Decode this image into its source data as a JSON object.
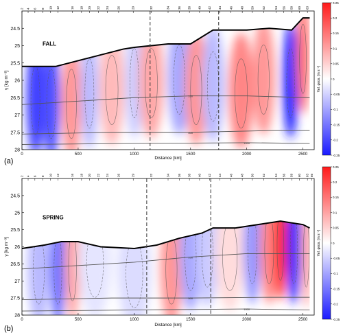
{
  "chart_data": [
    {
      "type": "heatmap",
      "panel_label": "(a)",
      "season": "FALL",
      "xlabel": "Distance [km]",
      "ylabel": "γ [kg m⁻³]",
      "xlim": [
        0,
        2600
      ],
      "ylim": [
        24,
        28
      ],
      "y_inverted": true,
      "x_ticks": [
        0,
        500,
        1000,
        1500,
        2000,
        2500
      ],
      "y_ticks": [
        24.5,
        25,
        25.5,
        26,
        26.5,
        27,
        27.5,
        28
      ],
      "station_ticks": [
        "2",
        "4",
        "6",
        "8",
        "10",
        "12",
        "16",
        "18",
        "20",
        "22",
        "24",
        "26",
        "29",
        "32",
        "34",
        "36",
        "38",
        "40",
        "42",
        "44",
        "46",
        "48",
        "50",
        "52",
        "54",
        "56",
        "58",
        "60",
        "63"
      ],
      "station_km": [
        0,
        55,
        115,
        185,
        255,
        320,
        450,
        530,
        600,
        680,
        760,
        860,
        990,
        1150,
        1300,
        1400,
        1490,
        1580,
        1670,
        1760,
        1860,
        1960,
        2050,
        2150,
        2260,
        2330,
        2400,
        2470,
        2540
      ],
      "dashed_lines_km": [
        1140,
        1750
      ],
      "surface_boundary": [
        [
          0,
          25.6
        ],
        [
          300,
          25.6
        ],
        [
          600,
          25.35
        ],
        [
          900,
          25.1
        ],
        [
          1000,
          25.05
        ],
        [
          1300,
          24.95
        ],
        [
          1500,
          24.95
        ],
        [
          1700,
          24.55
        ],
        [
          2000,
          24.55
        ],
        [
          2200,
          24.5
        ],
        [
          2400,
          24.55
        ],
        [
          2500,
          24.2
        ],
        [
          2560,
          24.2
        ]
      ],
      "depth_contours": [
        {
          "label": "100",
          "points": [
            [
              0,
              26.7
            ],
            [
              500,
              26.6
            ],
            [
              1000,
              26.5
            ],
            [
              1500,
              26.45
            ],
            [
              2000,
              26.45
            ],
            [
              2560,
              26.5
            ]
          ]
        },
        {
          "label": "500",
          "points": [
            [
              0,
              27.55
            ],
            [
              800,
              27.5
            ],
            [
              1500,
              27.5
            ],
            [
              2200,
              27.45
            ],
            [
              2560,
              27.45
            ]
          ]
        },
        {
          "label": "1000",
          "points": [
            [
              0,
              27.85
            ],
            [
              1000,
              27.82
            ],
            [
              2000,
              27.8
            ],
            [
              2560,
              27.82
            ]
          ]
        }
      ],
      "anomalies": [
        {
          "x": 120,
          "y": 26.5,
          "w": 160,
          "amp": -0.22
        },
        {
          "x": 260,
          "y": 26.6,
          "w": 160,
          "amp": -0.2
        },
        {
          "x": 440,
          "y": 26.6,
          "w": 180,
          "amp": 0.12
        },
        {
          "x": 600,
          "y": 26.3,
          "w": 160,
          "amp": -0.08
        },
        {
          "x": 800,
          "y": 26.2,
          "w": 220,
          "amp": 0.08
        },
        {
          "x": 1000,
          "y": 26.0,
          "w": 160,
          "amp": -0.06
        },
        {
          "x": 1150,
          "y": 26.0,
          "w": 220,
          "amp": 0.1
        },
        {
          "x": 1400,
          "y": 25.9,
          "w": 200,
          "amp": -0.1
        },
        {
          "x": 1550,
          "y": 26.2,
          "w": 200,
          "amp": 0.12
        },
        {
          "x": 1700,
          "y": 26.1,
          "w": 200,
          "amp": -0.08
        },
        {
          "x": 1950,
          "y": 26.3,
          "w": 220,
          "amp": 0.14
        },
        {
          "x": 2150,
          "y": 25.9,
          "w": 200,
          "amp": 0.12
        },
        {
          "x": 2390,
          "y": 26.0,
          "w": 140,
          "amp": -0.28
        },
        {
          "x": 2500,
          "y": 25.3,
          "w": 120,
          "amp": 0.16
        }
      ]
    },
    {
      "type": "heatmap",
      "panel_label": "(b)",
      "season": "SPRING",
      "xlabel": "Distance [km]",
      "ylabel": "γ [kg m⁻³]",
      "xlim": [
        0,
        2600
      ],
      "ylim": [
        24,
        28
      ],
      "y_inverted": true,
      "x_ticks": [
        0,
        500,
        1000,
        1500,
        2000,
        2500
      ],
      "y_ticks": [
        24.5,
        25,
        25.5,
        26,
        26.5,
        27,
        27.5,
        28
      ],
      "station_ticks": [
        "2",
        "4",
        "6",
        "8",
        "10",
        "12",
        "16",
        "18",
        "20",
        "22",
        "24",
        "26",
        "29",
        "32",
        "34",
        "36",
        "38",
        "40",
        "42",
        "44",
        "46",
        "48",
        "50",
        "52",
        "54",
        "56",
        "58",
        "60",
        "63",
        "66"
      ],
      "station_km": [
        0,
        55,
        115,
        185,
        255,
        320,
        450,
        530,
        600,
        680,
        760,
        860,
        990,
        1150,
        1300,
        1400,
        1490,
        1580,
        1670,
        1760,
        1860,
        1960,
        2050,
        2150,
        2260,
        2330,
        2400,
        2470,
        2540,
        2580
      ],
      "dashed_lines_km": [
        1110,
        1680
      ],
      "surface_boundary": [
        [
          0,
          26.05
        ],
        [
          200,
          25.95
        ],
        [
          350,
          25.85
        ],
        [
          500,
          25.85
        ],
        [
          700,
          26.0
        ],
        [
          1000,
          26.05
        ],
        [
          1200,
          25.95
        ],
        [
          1400,
          25.75
        ],
        [
          1600,
          25.6
        ],
        [
          1700,
          25.45
        ],
        [
          1900,
          25.45
        ],
        [
          2100,
          25.35
        ],
        [
          2300,
          25.25
        ],
        [
          2500,
          25.35
        ],
        [
          2560,
          25.45
        ]
      ],
      "depth_contours": [
        {
          "label": "100",
          "points": [
            [
              0,
              26.65
            ],
            [
              500,
              26.55
            ],
            [
              1000,
              26.45
            ],
            [
              1500,
              26.3
            ],
            [
              2000,
              26.2
            ],
            [
              2560,
              26.2
            ]
          ]
        },
        {
          "label": "500",
          "points": [
            [
              0,
              27.55
            ],
            [
              800,
              27.5
            ],
            [
              1500,
              27.5
            ],
            [
              2200,
              27.48
            ],
            [
              2560,
              27.48
            ]
          ]
        },
        {
          "label": "1000",
          "points": [
            [
              0,
              27.88
            ],
            [
              1000,
              27.85
            ],
            [
              2000,
              27.82
            ],
            [
              2560,
              27.85
            ]
          ]
        }
      ],
      "anomalies": [
        {
          "x": 150,
          "y": 26.6,
          "w": 200,
          "amp": -0.08
        },
        {
          "x": 320,
          "y": 26.6,
          "w": 140,
          "amp": -0.16
        },
        {
          "x": 450,
          "y": 26.5,
          "w": 140,
          "amp": 0.1
        },
        {
          "x": 650,
          "y": 26.4,
          "w": 300,
          "amp": -0.03
        },
        {
          "x": 1000,
          "y": 26.7,
          "w": 300,
          "amp": -0.04
        },
        {
          "x": 1330,
          "y": 26.6,
          "w": 200,
          "amp": 0.12
        },
        {
          "x": 1500,
          "y": 26.2,
          "w": 200,
          "amp": -0.1
        },
        {
          "x": 1650,
          "y": 26.1,
          "w": 200,
          "amp": -0.06
        },
        {
          "x": 1850,
          "y": 26.2,
          "w": 260,
          "amp": 0.04
        },
        {
          "x": 2050,
          "y": 26.0,
          "w": 160,
          "amp": -0.12
        },
        {
          "x": 2200,
          "y": 26.0,
          "w": 160,
          "amp": 0.14
        },
        {
          "x": 2300,
          "y": 25.9,
          "w": 120,
          "amp": 0.3
        },
        {
          "x": 2420,
          "y": 26.0,
          "w": 130,
          "amp": -0.3
        },
        {
          "x": 2530,
          "y": 26.1,
          "w": 100,
          "amp": 0.1
        }
      ]
    }
  ],
  "colorbar": {
    "label": "Vel. geos. [m s⁻¹]",
    "range": [
      -0.25,
      0.25
    ],
    "ticks": [
      -0.25,
      -0.2,
      -0.15,
      -0.1,
      -0.05,
      0,
      0.05,
      0.1,
      0.15,
      0.2,
      0.25
    ],
    "tick_labels": [
      "-0.25",
      "-0.2",
      "-0.15",
      "-0.1",
      "-0.05",
      "0",
      "0.05",
      "0.1",
      "0.15",
      "0.2",
      "0.25"
    ],
    "colors": {
      "negative": "#1a1aff",
      "zero": "#ffffff",
      "positive": "#ff1a1a"
    }
  }
}
